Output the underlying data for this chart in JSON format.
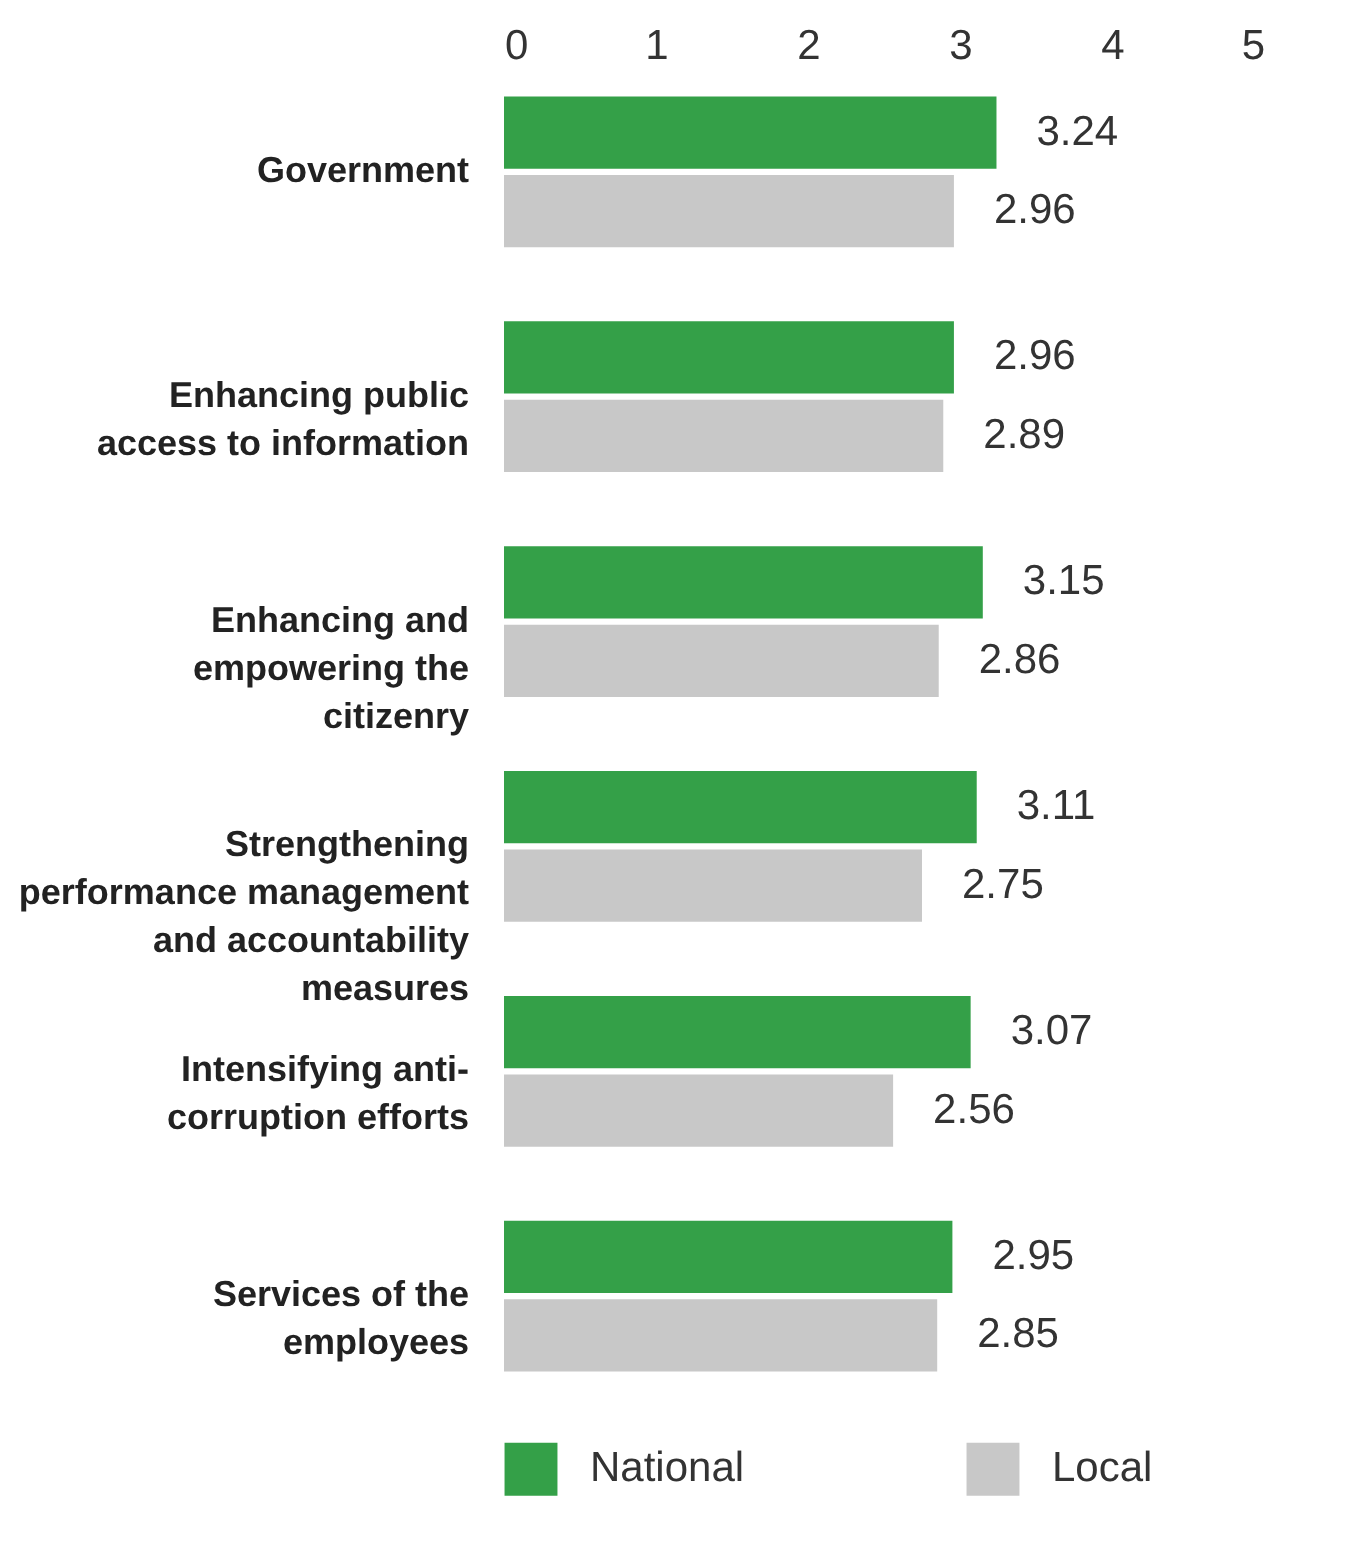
{
  "chart_data": {
    "type": "bar",
    "orientation": "horizontal",
    "categories": [
      "Government",
      "Enhancing public access to information",
      "Enhancing and empowering the citizenry",
      "Strengthening performance management and accountability measures",
      "Intensifying anti-corruption efforts",
      "Services of the employees"
    ],
    "series": [
      {
        "name": "National",
        "color": "#34a048",
        "values": [
          3.24,
          2.96,
          3.15,
          3.11,
          3.07,
          2.95
        ]
      },
      {
        "name": "Local",
        "color": "#c8c8c8",
        "values": [
          2.96,
          2.89,
          2.86,
          2.75,
          2.56,
          2.85
        ]
      }
    ],
    "xlim": [
      0,
      5
    ],
    "xticks": [
      0,
      1,
      2,
      3,
      4,
      5
    ],
    "data_labels": true,
    "legend": "bottom"
  }
}
